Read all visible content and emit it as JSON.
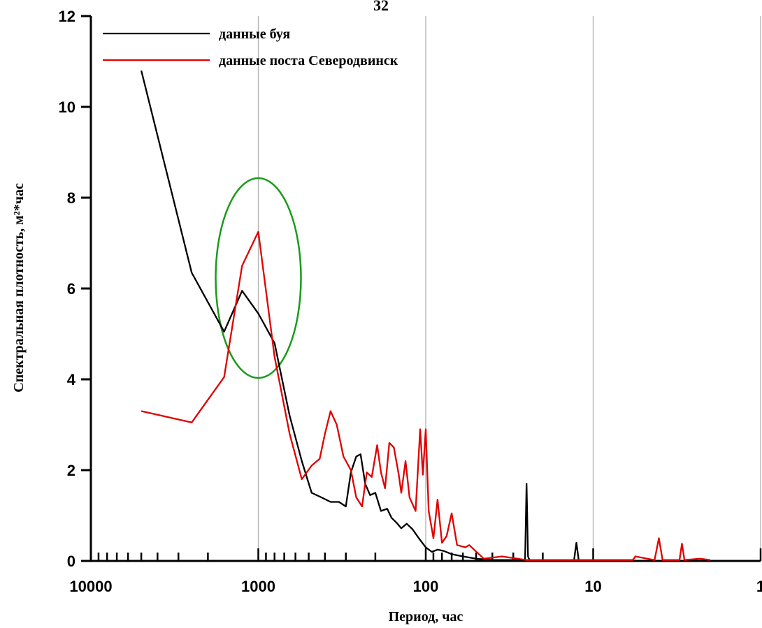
{
  "page_number": "32",
  "chart_data": {
    "type": "line",
    "title": "",
    "xlabel": "Период, час",
    "ylabel": "Спектральная плотность, м²*час",
    "x_scale": "log",
    "x_reversed": true,
    "xlim": [
      10000,
      1
    ],
    "ylim": [
      0,
      12
    ],
    "x_tick_labels": [
      "10000",
      "1000",
      "100",
      "10",
      "1"
    ],
    "y_tick_labels": [
      "0",
      "2",
      "4",
      "6",
      "8",
      "10",
      "12"
    ],
    "grid": "vertical lines at 1000, 100, 10",
    "legend_position": "top-left",
    "annotation": "green ellipse around the ~1000 h peak",
    "colors": {
      "buoy": "#000000",
      "severodvinsk": "#e00000",
      "ellipse": "#1a9a1a",
      "grid": "#b0b0b0"
    },
    "series": [
      {
        "name": "данные буя",
        "color": "#000000",
        "points": [
          [
            5000,
            10.8
          ],
          [
            2500,
            6.35
          ],
          [
            1600,
            5.05
          ],
          [
            1250,
            5.95
          ],
          [
            1000,
            5.45
          ],
          [
            800,
            4.8
          ],
          [
            650,
            3.2
          ],
          [
            550,
            2.2
          ],
          [
            480,
            1.5
          ],
          [
            420,
            1.4
          ],
          [
            370,
            1.3
          ],
          [
            330,
            1.3
          ],
          [
            300,
            1.2
          ],
          [
            280,
            1.95
          ],
          [
            260,
            2.3
          ],
          [
            245,
            2.35
          ],
          [
            230,
            1.7
          ],
          [
            215,
            1.45
          ],
          [
            200,
            1.5
          ],
          [
            185,
            1.1
          ],
          [
            170,
            1.15
          ],
          [
            160,
            0.95
          ],
          [
            150,
            0.85
          ],
          [
            140,
            0.72
          ],
          [
            130,
            0.82
          ],
          [
            120,
            0.7
          ],
          [
            110,
            0.5
          ],
          [
            100,
            0.3
          ],
          [
            92,
            0.2
          ],
          [
            85,
            0.25
          ],
          [
            78,
            0.22
          ],
          [
            70,
            0.15
          ],
          [
            60,
            0.1
          ],
          [
            50,
            0.05
          ],
          [
            40,
            0.02
          ],
          [
            30,
            0.02
          ],
          [
            25.5,
            0.02
          ],
          [
            25,
            1.7
          ],
          [
            24.5,
            0.1
          ],
          [
            24,
            0.02
          ],
          [
            13,
            0.02
          ],
          [
            12.6,
            0.4
          ],
          [
            12.2,
            0.02
          ],
          [
            10,
            0.0
          ],
          [
            2,
            0.0
          ]
        ]
      },
      {
        "name": "данные поста Северодвинск",
        "color": "#e00000",
        "points": [
          [
            5000,
            3.3
          ],
          [
            2500,
            3.05
          ],
          [
            1600,
            4.05
          ],
          [
            1250,
            6.5
          ],
          [
            1000,
            7.25
          ],
          [
            800,
            4.5
          ],
          [
            650,
            2.8
          ],
          [
            550,
            1.8
          ],
          [
            480,
            2.1
          ],
          [
            430,
            2.25
          ],
          [
            400,
            2.8
          ],
          [
            370,
            3.3
          ],
          [
            340,
            3.0
          ],
          [
            310,
            2.3
          ],
          [
            280,
            2.0
          ],
          [
            260,
            1.4
          ],
          [
            240,
            1.2
          ],
          [
            225,
            1.95
          ],
          [
            210,
            1.85
          ],
          [
            195,
            2.55
          ],
          [
            185,
            1.95
          ],
          [
            175,
            1.6
          ],
          [
            165,
            2.6
          ],
          [
            155,
            2.5
          ],
          [
            145,
            1.9
          ],
          [
            140,
            1.5
          ],
          [
            132,
            2.2
          ],
          [
            125,
            1.4
          ],
          [
            115,
            1.1
          ],
          [
            108,
            2.9
          ],
          [
            104,
            1.9
          ],
          [
            100,
            2.9
          ],
          [
            96,
            1.1
          ],
          [
            90,
            0.5
          ],
          [
            85,
            1.35
          ],
          [
            80,
            0.4
          ],
          [
            75,
            0.55
          ],
          [
            70,
            1.05
          ],
          [
            65,
            0.35
          ],
          [
            58,
            0.3
          ],
          [
            55,
            0.35
          ],
          [
            45,
            0.05
          ],
          [
            35,
            0.1
          ],
          [
            25,
            0.02
          ],
          [
            10,
            0.02
          ],
          [
            5.8,
            0.02
          ],
          [
            5.6,
            0.1
          ],
          [
            4.3,
            0.02
          ],
          [
            4.05,
            0.5
          ],
          [
            3.85,
            0.02
          ],
          [
            3.05,
            0.02
          ],
          [
            2.95,
            0.38
          ],
          [
            2.85,
            0.02
          ],
          [
            2.3,
            0.05
          ],
          [
            2,
            0.02
          ]
        ]
      }
    ]
  }
}
